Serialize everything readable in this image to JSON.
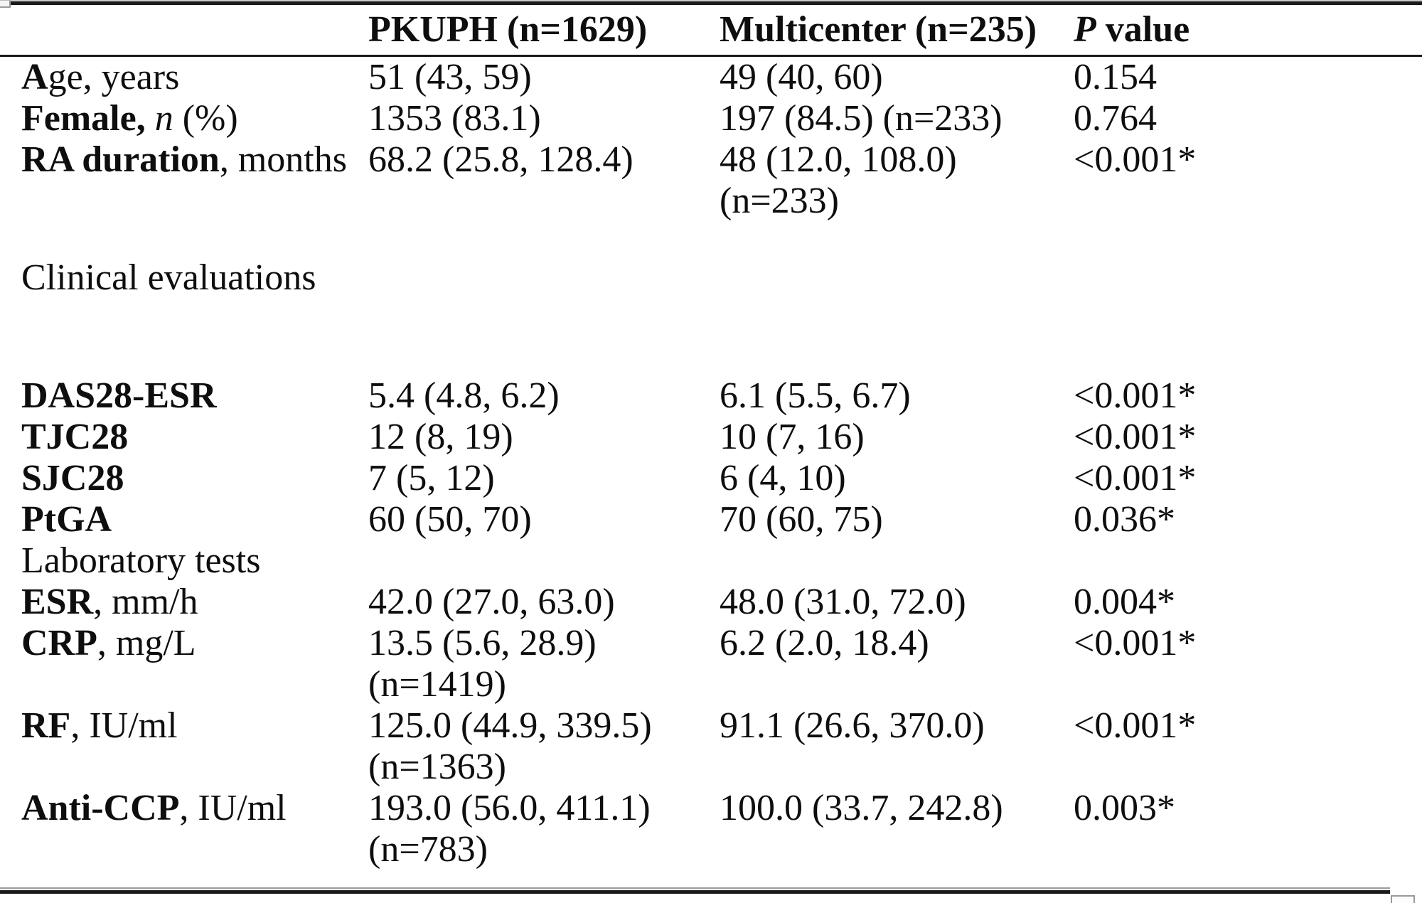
{
  "table": {
    "header": {
      "pkuph": "PKUPH (n=1629)",
      "multicenter": "Multicenter (n=235)",
      "p_italic": "P",
      "p_rest": " value"
    },
    "rows": [
      {
        "label_bold": "A",
        "label_mid": "ge, years",
        "label_italic": "",
        "label_tail": "",
        "pkuph": "51 (43, 59)",
        "multicenter": "49 (40, 60)",
        "p": "0.154"
      },
      {
        "label_bold": "Female,",
        "label_mid": " ",
        "label_italic": "n",
        "label_tail": " (%)",
        "pkuph": "1353 (83.1)",
        "multicenter": "197 (84.5) (n=233)",
        "p": "0.764"
      },
      {
        "label_bold": "RA duration",
        "label_mid": ", months",
        "label_italic": "",
        "label_tail": "",
        "pkuph": "68.2 (25.8, 128.4)",
        "multicenter": "48 (12.0, 108.0)\n(n=233)",
        "p": "<0.001*"
      },
      {
        "label_bold": "",
        "label_mid": "Clinical evaluations",
        "label_italic": "",
        "label_tail": "",
        "pkuph": "",
        "multicenter": "",
        "p": ""
      },
      {
        "label_bold": "DAS28-ESR",
        "label_mid": "",
        "label_italic": "",
        "label_tail": "",
        "pkuph": "5.4 (4.8, 6.2)",
        "multicenter": "6.1 (5.5, 6.7)",
        "p": "<0.001*"
      },
      {
        "label_bold": "TJC28",
        "label_mid": "",
        "label_italic": "",
        "label_tail": "",
        "pkuph": "12 (8, 19)",
        "multicenter": "10 (7, 16)",
        "p": "<0.001*"
      },
      {
        "label_bold": "SJC28",
        "label_mid": "",
        "label_italic": "",
        "label_tail": "",
        "pkuph": "7 (5, 12)",
        "multicenter": "6 (4, 10)",
        "p": "<0.001*"
      },
      {
        "label_bold": "PtGA",
        "label_mid": "",
        "label_italic": "",
        "label_tail": "",
        "pkuph": "60 (50, 70)",
        "multicenter": "70 (60, 75)",
        "p": "0.036*"
      },
      {
        "label_bold": "",
        "label_mid": "Laboratory tests",
        "label_italic": "",
        "label_tail": "",
        "pkuph": "",
        "multicenter": "",
        "p": ""
      },
      {
        "label_bold": "ESR",
        "label_mid": ", mm/h",
        "label_italic": "",
        "label_tail": "",
        "pkuph": "42.0 (27.0, 63.0)",
        "multicenter": "48.0 (31.0, 72.0)",
        "p": "0.004*"
      },
      {
        "label_bold": "CRP",
        "label_mid": ", mg/L",
        "label_italic": "",
        "label_tail": "",
        "pkuph": "13.5 (5.6, 28.9)\n(n=1419)",
        "multicenter": "6.2 (2.0, 18.4)",
        "p": "<0.001*"
      },
      {
        "label_bold": "RF",
        "label_mid": ", IU/ml",
        "label_italic": "",
        "label_tail": "",
        "pkuph": "125.0 (44.9, 339.5)\n(n=1363)",
        "multicenter": "91.1 (26.6, 370.0)",
        "p": "<0.001*"
      },
      {
        "label_bold": "Anti-CCP",
        "label_mid": ", IU/ml",
        "label_italic": "",
        "label_tail": "",
        "pkuph": "193.0 (56.0, 411.1)\n(n=783)",
        "multicenter": "100.0 (33.7, 242.8)",
        "p": "0.003*"
      }
    ]
  }
}
